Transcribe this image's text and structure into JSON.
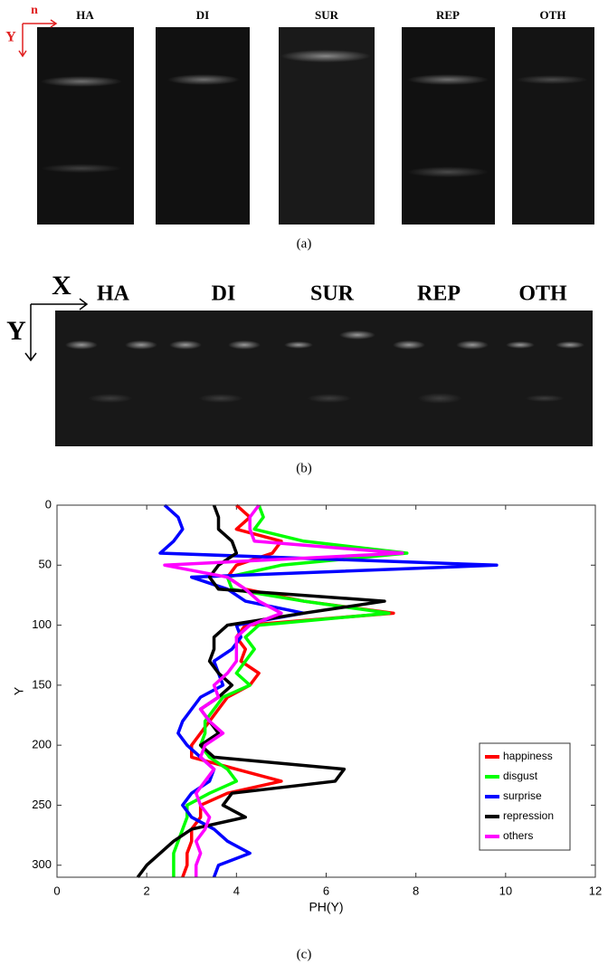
{
  "panel_a": {
    "axis_labels": {
      "horizontal": "n",
      "vertical": "Y"
    },
    "labels": [
      "HA",
      "DI",
      "SUR",
      "REP",
      "OTH"
    ],
    "caption": "(a)"
  },
  "panel_b": {
    "axis_labels": {
      "horizontal": "X",
      "vertical": "Y"
    },
    "labels": [
      "HA",
      "DI",
      "SUR",
      "REP",
      "OTH"
    ],
    "caption": "(b)"
  },
  "chart_data": {
    "type": "line",
    "y_label": "Y",
    "x_label": "PH(Y)",
    "y": [
      0,
      10,
      20,
      30,
      40,
      50,
      60,
      70,
      80,
      90,
      100,
      110,
      120,
      130,
      140,
      150,
      160,
      170,
      180,
      190,
      200,
      210,
      220,
      230,
      240,
      250,
      260,
      270,
      280,
      290,
      300,
      310
    ],
    "series": [
      {
        "name": "happiness",
        "color": "#ff0000",
        "values": [
          4.0,
          4.3,
          4.0,
          5.0,
          4.8,
          4.0,
          3.8,
          4.2,
          5.5,
          7.5,
          4.2,
          4.0,
          4.2,
          4.1,
          4.5,
          4.3,
          3.8,
          3.6,
          3.4,
          3.2,
          3.0,
          3.0,
          4.0,
          5.0,
          3.8,
          3.2,
          3.2,
          3.0,
          3.0,
          2.9,
          2.9,
          2.8
        ]
      },
      {
        "name": "disgust",
        "color": "#00ff00",
        "values": [
          4.5,
          4.6,
          4.4,
          5.5,
          7.8,
          5.0,
          3.8,
          3.9,
          5.5,
          7.4,
          4.5,
          4.2,
          4.4,
          4.2,
          4.0,
          4.3,
          3.7,
          3.5,
          3.3,
          3.3,
          3.2,
          3.4,
          3.8,
          4.0,
          3.4,
          2.9,
          2.9,
          2.8,
          2.7,
          2.6,
          2.6,
          2.6
        ]
      },
      {
        "name": "surprise",
        "color": "#0000ff",
        "values": [
          2.4,
          2.7,
          2.8,
          2.6,
          2.3,
          9.8,
          3.0,
          3.8,
          4.2,
          5.5,
          4.0,
          4.1,
          3.9,
          3.5,
          3.6,
          3.7,
          3.2,
          3.0,
          2.8,
          2.7,
          2.9,
          3.2,
          3.5,
          3.4,
          3.0,
          2.8,
          3.0,
          3.5,
          3.8,
          4.3,
          3.6,
          3.5
        ]
      },
      {
        "name": "repression",
        "color": "#000000",
        "values": [
          3.5,
          3.6,
          3.6,
          3.9,
          4.0,
          3.6,
          3.4,
          3.6,
          7.3,
          5.5,
          3.8,
          3.5,
          3.5,
          3.4,
          3.6,
          3.9,
          3.6,
          3.2,
          3.4,
          3.6,
          3.2,
          3.5,
          6.4,
          6.2,
          3.9,
          3.7,
          4.2,
          3.0,
          2.6,
          2.3,
          2.0,
          1.8
        ]
      },
      {
        "name": "others",
        "color": "#ff00ff",
        "values": [
          4.5,
          4.3,
          4.3,
          4.4,
          7.7,
          2.4,
          3.8,
          4.2,
          4.5,
          5.0,
          4.3,
          4.0,
          4.0,
          4.0,
          3.8,
          3.5,
          3.6,
          3.2,
          3.4,
          3.7,
          3.3,
          3.2,
          3.5,
          3.3,
          3.1,
          3.2,
          3.4,
          3.3,
          3.1,
          3.2,
          3.1,
          3.1
        ]
      }
    ],
    "xlim": [
      0,
      12
    ],
    "xticks": [
      0,
      2,
      4,
      6,
      8,
      10,
      12
    ],
    "ylim": [
      0,
      310
    ],
    "yticks": [
      0,
      50,
      100,
      150,
      200,
      250,
      300
    ],
    "y_reversed": true,
    "legend": "lower right",
    "grid": false
  },
  "caption_c": "(c)"
}
